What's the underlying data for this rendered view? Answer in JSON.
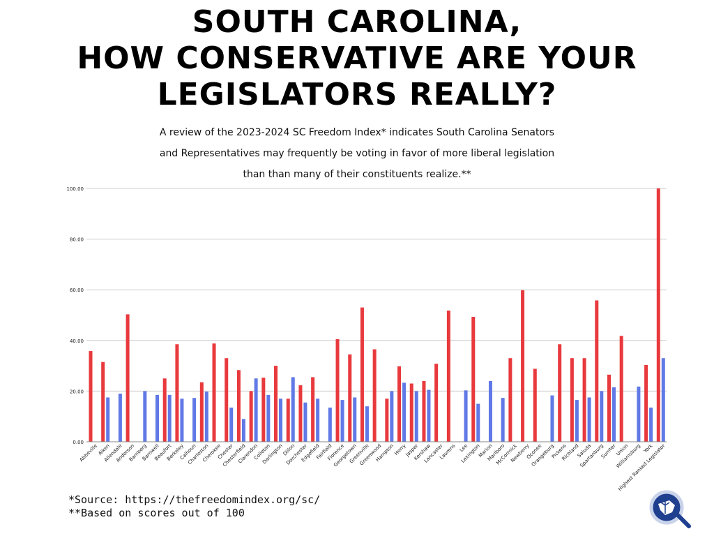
{
  "title_lines": [
    "SOUTH CAROLINA,",
    "HOW CONSERVATIVE ARE YOUR",
    "LEGISLATORS REALLY?"
  ],
  "subtitle_lines": [
    "A review of the 2023-2024 SC Freedom Index* indicates South Carolina Senators",
    "and Representatives may frequently be voting in favor of more liberal legislation",
    "than than many of their constituents realize.**"
  ],
  "footer": {
    "source": "*Source: https://thefreedomindex.org/sc/",
    "note": "**Based on scores out of 100"
  },
  "logo_icon": "palmetto-magnifier-icon",
  "colors": {
    "red": "#e8393d",
    "blue": "#6079e6",
    "grid": "#cccccc"
  },
  "chart_data": {
    "type": "bar",
    "title": "",
    "xlabel": "",
    "ylabel": "",
    "ylim": [
      0,
      100
    ],
    "yticks": [
      "0.00",
      "20.00",
      "40.00",
      "60.00",
      "80.00",
      "100.00"
    ],
    "grid": true,
    "categories": [
      "Abbeville",
      "Aiken",
      "Allendale",
      "Anderson",
      "Bamberg",
      "Barnwell",
      "Beaufort",
      "Berkeley",
      "Calhoun",
      "Charleston",
      "Cherokee",
      "Chester",
      "Chesterfield",
      "Clarendon",
      "Colleton",
      "Darlington",
      "Dillon",
      "Dorchester",
      "Edgefield",
      "Fairfield",
      "Florence",
      "Georgetown",
      "Greenville",
      "Greenwood",
      "Hampton",
      "Horry",
      "Jasper",
      "Kershaw",
      "Lancaster",
      "Laurens",
      "Lee",
      "Lexington",
      "Marion",
      "Marlboro",
      "McCormick",
      "Newberry",
      "Oconee",
      "Orangeburg",
      "Pickens",
      "Richland",
      "Saluda",
      "Spartanburg",
      "Sumter",
      "Union",
      "Williamsburg",
      "York",
      "Highest Ranked Legislator"
    ],
    "series": [
      {
        "values": [
          35.8,
          31.5,
          null,
          50.3,
          null,
          null,
          25.0,
          38.5,
          null,
          23.5,
          38.8,
          33.0,
          28.3,
          20.0,
          25.3,
          30.0,
          17.0,
          22.3,
          25.5,
          null,
          40.5,
          34.5,
          53.0,
          36.5,
          17.0,
          29.8,
          23.0,
          24.0,
          30.8,
          51.8,
          null,
          49.3,
          null,
          null,
          33.0,
          59.8,
          28.8,
          null,
          38.5,
          33.0,
          33.0,
          55.8,
          26.5,
          41.8,
          null,
          30.3,
          100.0
        ]
      },
      {
        "values": [
          null,
          17.5,
          19.0,
          null,
          20.0,
          18.5,
          18.5,
          17.0,
          17.3,
          19.8,
          null,
          13.5,
          9.0,
          25.0,
          18.5,
          17.0,
          25.5,
          15.5,
          17.0,
          13.5,
          16.5,
          17.5,
          14.0,
          null,
          20.0,
          23.3,
          20.0,
          20.5,
          null,
          null,
          20.3,
          15.0,
          24.0,
          17.3,
          null,
          null,
          null,
          18.3,
          null,
          16.5,
          17.5,
          20.0,
          21.5,
          null,
          21.8,
          13.5,
          33.0
        ]
      }
    ]
  }
}
